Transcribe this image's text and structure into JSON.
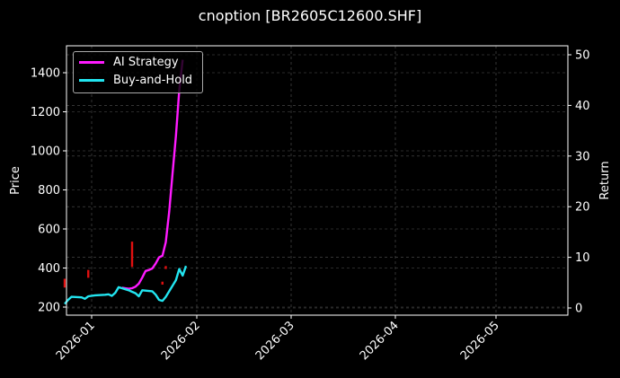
{
  "chart_data": {
    "type": "line",
    "title": "cnoption [BR2605C12600.SHF]",
    "xlabel": "",
    "ylabel": "Price",
    "y2label": "Return",
    "ylim": [
      160,
      1540
    ],
    "y2lim": [
      -1.5,
      51.5
    ],
    "yticks": [
      200,
      400,
      600,
      800,
      1000,
      1200,
      1400
    ],
    "y2ticks": [
      0,
      10,
      20,
      30,
      40,
      50
    ],
    "xticks": [
      "2026-01",
      "2026-02",
      "2026-03",
      "2026-04",
      "2026-05"
    ],
    "grid": true,
    "legend_position": "upper left",
    "series": [
      {
        "name": "AI Strategy",
        "axis": "right",
        "color": "#ff1aff",
        "x": [
          "2026-01-10",
          "2026-01-11",
          "2026-01-12",
          "2026-01-13",
          "2026-01-14",
          "2026-01-15",
          "2026-01-16",
          "2026-01-17",
          "2026-01-18",
          "2026-01-19",
          "2026-01-20",
          "2026-01-21",
          "2026-01-22",
          "2026-01-23",
          "2026-01-24",
          "2026-01-25",
          "2026-01-26",
          "2026-01-27",
          "2026-01-28"
        ],
        "values": [
          4.0,
          3.9,
          3.8,
          3.9,
          4.2,
          4.8,
          6.0,
          7.3,
          7.5,
          7.8,
          8.8,
          10.0,
          10.3,
          13.0,
          19.0,
          26.5,
          34.0,
          43.0,
          49.0
        ]
      },
      {
        "name": "Buy-and-Hold",
        "axis": "right",
        "color": "#22e5f0",
        "x": [
          "2025-12-24",
          "2025-12-25",
          "2025-12-26",
          "2025-12-29",
          "2025-12-30",
          "2025-12-31",
          "2026-01-02",
          "2026-01-05",
          "2026-01-06",
          "2026-01-07",
          "2026-01-08",
          "2026-01-09",
          "2026-01-12",
          "2026-01-13",
          "2026-01-14",
          "2026-01-15",
          "2026-01-16",
          "2026-01-19",
          "2026-01-20",
          "2026-01-21",
          "2026-01-22",
          "2026-01-23",
          "2026-01-26",
          "2026-01-27",
          "2026-01-28",
          "2026-01-29"
        ],
        "values": [
          0.8,
          1.6,
          2.2,
          2.1,
          1.8,
          2.3,
          2.5,
          2.6,
          2.7,
          2.4,
          3.0,
          4.1,
          3.5,
          3.2,
          2.9,
          2.3,
          3.5,
          3.3,
          2.6,
          1.6,
          1.4,
          2.2,
          5.5,
          7.7,
          6.4,
          8.3
        ]
      }
    ],
    "candles": {
      "name": "Price (OHLC)",
      "axis": "left",
      "color": "#e01010",
      "bars": [
        {
          "x": "2025-12-24",
          "low": 300,
          "high": 345
        },
        {
          "x": "2025-12-31",
          "low": 350,
          "high": 390
        },
        {
          "x": "2026-01-13",
          "low": 405,
          "high": 535
        },
        {
          "x": "2026-01-22",
          "low": 315,
          "high": 330
        },
        {
          "x": "2026-01-23",
          "low": 395,
          "high": 410
        }
      ]
    }
  }
}
